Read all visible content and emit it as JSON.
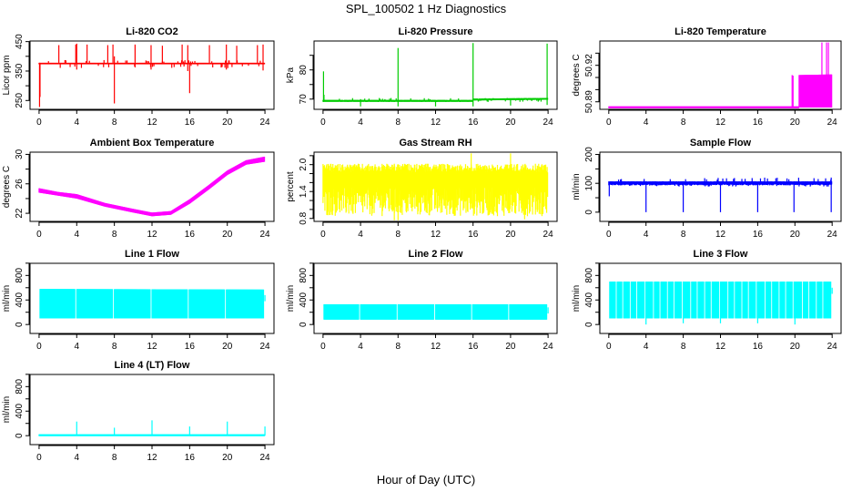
{
  "title": "SPL_100502  1 Hz Diagnostics",
  "xlabel": "Hour of Day (UTC)",
  "chart_data": [
    {
      "type": "line",
      "title": "Li-820 CO2",
      "ylabel": "Licor ppm",
      "color": "#ff0000",
      "xlim": [
        0,
        24
      ],
      "xticks": [
        0,
        4,
        8,
        12,
        16,
        20,
        24
      ],
      "ylim": [
        220,
        452
      ],
      "yticks": [
        250,
        300,
        350,
        400,
        450
      ],
      "ylabels": [
        "250",
        "350",
        "450"
      ],
      "band": [
        [
          0,
          373,
          378
        ],
        [
          24,
          373,
          378
        ]
      ],
      "noise": 0.0,
      "jitter": [
        360,
        388
      ],
      "gaps": [],
      "spikes": [
        [
          0.05,
          228,
          378
        ],
        [
          0.1,
          262,
          378
        ],
        [
          2.1,
          378,
          438
        ],
        [
          3.9,
          378,
          440
        ],
        [
          4.0,
          355,
          443
        ],
        [
          5.1,
          378,
          440
        ],
        [
          7.3,
          378,
          438
        ],
        [
          7.85,
          378,
          440
        ],
        [
          8.0,
          240,
          400
        ],
        [
          10.2,
          378,
          440
        ],
        [
          11.9,
          355,
          438
        ],
        [
          13.1,
          378,
          436
        ],
        [
          15.2,
          378,
          440
        ],
        [
          15.8,
          350,
          438
        ],
        [
          16.0,
          275,
          378
        ],
        [
          18.1,
          378,
          438
        ],
        [
          19.9,
          355,
          440
        ],
        [
          21.0,
          378,
          436
        ],
        [
          23.2,
          378,
          438
        ],
        [
          23.8,
          352,
          440
        ]
      ]
    },
    {
      "type": "line",
      "title": "Li-820 Pressure",
      "ylabel": "kPa",
      "color": "#00cc00",
      "xlim": [
        0,
        24
      ],
      "xticks": [
        0,
        4,
        8,
        12,
        16,
        20,
        24
      ],
      "ylim": [
        66.5,
        89.9
      ],
      "yticks": [
        70,
        75,
        80,
        85
      ],
      "ylabels": [
        "70",
        "80"
      ],
      "band": [
        [
          0,
          69.2,
          69.6
        ],
        [
          15.95,
          69.2,
          69.6
        ],
        [
          16,
          69.7,
          70.0
        ],
        [
          24,
          69.9,
          70.3
        ]
      ],
      "noise": 0.0,
      "jitter": [
        69.0,
        70.4
      ],
      "gaps": [],
      "spikes": [
        [
          0.05,
          69.3,
          79.5
        ],
        [
          0.1,
          69.3,
          71.5
        ],
        [
          4.0,
          67.5,
          70
        ],
        [
          8.0,
          67.5,
          87.5
        ],
        [
          12.0,
          67.5,
          69.5
        ],
        [
          16.0,
          67.5,
          89.2
        ],
        [
          20.0,
          67.8,
          70.2
        ],
        [
          23.9,
          68,
          89
        ]
      ]
    },
    {
      "type": "line",
      "title": "Li-820 Temperature",
      "ylabel": "degrees C",
      "color": "#ff00ff",
      "xlim": [
        0,
        24
      ],
      "xticks": [
        0,
        4,
        8,
        12,
        16,
        20,
        24
      ],
      "ylim": [
        50.8838,
        50.94
      ],
      "yticks": [
        50.89,
        50.9,
        50.91,
        50.92,
        50.93
      ],
      "ylabels": [
        "50.89",
        "50.92"
      ],
      "band": [
        [
          0,
          50.8853,
          50.8857
        ],
        [
          20.4,
          50.8853,
          50.8857
        ],
        [
          20.42,
          50.8853,
          50.912
        ],
        [
          24,
          50.8853,
          50.9125
        ]
      ],
      "noise": 0.0,
      "jitter": null,
      "gaps": [],
      "spikes": [
        [
          19.7,
          50.8853,
          50.912
        ],
        [
          19.8,
          50.8853,
          50.9115
        ],
        [
          22.9,
          50.8853,
          50.9388
        ],
        [
          23.4,
          50.8853,
          50.9388
        ],
        [
          23.6,
          50.8853,
          50.9388
        ]
      ]
    },
    {
      "type": "line",
      "title": "Ambient Box Temperature",
      "ylabel": "degrees C",
      "color": "#ff00ff",
      "xlim": [
        0,
        24
      ],
      "xticks": [
        0,
        4,
        8,
        12,
        16,
        20,
        24
      ],
      "ylim": [
        20.9,
        30.3
      ],
      "yticks": [
        22,
        24,
        26,
        28,
        30
      ],
      "ylabels": [
        "22",
        "26",
        "30"
      ],
      "band": [
        [
          0,
          24.8,
          25.4
        ],
        [
          2,
          24.4,
          24.9
        ],
        [
          4,
          24.0,
          24.6
        ],
        [
          7,
          22.9,
          23.4
        ],
        [
          10,
          22.1,
          22.6
        ],
        [
          12,
          21.6,
          22.1
        ],
        [
          14,
          21.8,
          22.3
        ],
        [
          16,
          23.3,
          23.9
        ],
        [
          18,
          25.2,
          25.8
        ],
        [
          20,
          27.2,
          27.8
        ],
        [
          22,
          28.6,
          29.2
        ],
        [
          24,
          29.0,
          29.7
        ]
      ],
      "noise": 0.0,
      "jitter": null,
      "gaps": [],
      "spikes": []
    },
    {
      "type": "line",
      "title": "Gas Stream RH",
      "ylabel": "percent",
      "color": "#ffff00",
      "xlim": [
        0,
        24
      ],
      "xticks": [
        0,
        4,
        8,
        12,
        16,
        20,
        24
      ],
      "ylim": [
        0.734,
        2.278
      ],
      "yticks": [
        0.8,
        1.0,
        1.2,
        1.4,
        1.6,
        1.8,
        2.0,
        2.2
      ],
      "ylabels": [
        "0.8",
        "1.4",
        "2.0"
      ],
      "band": [
        [
          0,
          0.85,
          2.02
        ],
        [
          24,
          0.85,
          2.02
        ]
      ],
      "noise": 0.55,
      "jitter": null,
      "gaps": [],
      "spikes": [
        [
          7.6,
          0.76,
          2.0
        ],
        [
          8.0,
          0.76,
          2.0
        ],
        [
          15.8,
          1.2,
          2.25
        ],
        [
          20.0,
          1.1,
          2.25
        ],
        [
          21.5,
          0.78,
          2.0
        ]
      ]
    },
    {
      "type": "line",
      "title": "Sample Flow",
      "ylabel": "ml/min",
      "color": "#0000ff",
      "xlim": [
        0,
        24
      ],
      "xticks": [
        0,
        4,
        8,
        12,
        16,
        20,
        24
      ],
      "ylim": [
        -32,
        208
      ],
      "yticks": [
        0,
        50,
        100,
        150,
        200
      ],
      "ylabels": [
        "0",
        "100",
        "200"
      ],
      "band": [
        [
          0,
          93,
          107
        ],
        [
          24,
          93,
          107
        ]
      ],
      "noise": 0.3,
      "jitter": [
        88,
        120
      ],
      "gaps": [],
      "spikes": [
        [
          0.05,
          55,
          105
        ],
        [
          4.0,
          0,
          105
        ],
        [
          8.0,
          0,
          105
        ],
        [
          12.0,
          0,
          105
        ],
        [
          16.0,
          0,
          105
        ],
        [
          19.9,
          0,
          105
        ],
        [
          23.9,
          0,
          120
        ]
      ]
    },
    {
      "type": "line",
      "title": "Line 1 Flow",
      "ylabel": "ml/min",
      "color": "#00ffff",
      "xlim": [
        0,
        24
      ],
      "xticks": [
        0,
        4,
        8,
        12,
        16,
        20,
        24
      ],
      "ylim": [
        -146,
        998
      ],
      "yticks": [
        0,
        200,
        400,
        600,
        800,
        1000
      ],
      "ylabels": [
        "0",
        "400",
        "800"
      ],
      "band": [
        [
          0.1,
          100,
          580
        ],
        [
          23.9,
          100,
          570
        ]
      ],
      "noise": 0.0,
      "jitter": null,
      "gaps": [
        3.9,
        7.9,
        11.9,
        15.85,
        19.8
      ],
      "spikes": [
        [
          24.0,
          380,
          480
        ]
      ]
    },
    {
      "type": "line",
      "title": "Line 2 Flow",
      "ylabel": "ml/min",
      "color": "#00ffff",
      "xlim": [
        0,
        24
      ],
      "xticks": [
        0,
        4,
        8,
        12,
        16,
        20,
        24
      ],
      "ylim": [
        -146,
        998
      ],
      "yticks": [
        0,
        200,
        400,
        600,
        800,
        1000
      ],
      "ylabels": [
        "0",
        "400",
        "800"
      ],
      "band": [
        [
          0.1,
          80,
          330
        ],
        [
          23.9,
          80,
          330
        ]
      ],
      "noise": 0.0,
      "jitter": null,
      "gaps": [
        3.9,
        7.9,
        11.9,
        15.85,
        19.8
      ],
      "spikes": [
        [
          24.0,
          180,
          280
        ]
      ]
    },
    {
      "type": "line",
      "title": "Line 3 Flow",
      "ylabel": "ml/min",
      "color": "#00ffff",
      "xlim": [
        0,
        24
      ],
      "xticks": [
        0,
        4,
        8,
        12,
        16,
        20,
        24
      ],
      "ylim": [
        -146,
        998
      ],
      "yticks": [
        0,
        200,
        400,
        600,
        800,
        1000
      ],
      "ylabels": [
        "0",
        "400",
        "800"
      ],
      "band": [
        [
          0.1,
          100,
          700
        ],
        [
          23.9,
          100,
          700
        ]
      ],
      "noise": 0.0,
      "jitter": null,
      "gaps": [
        0.8,
        1.5,
        2.3,
        3.0,
        3.9,
        4.8,
        5.5,
        6.3,
        7.0,
        7.9,
        8.8,
        9.5,
        10.3,
        11.0,
        11.9,
        12.8,
        13.5,
        14.3,
        15.0,
        15.85,
        16.8,
        17.5,
        18.3,
        19.0,
        19.8,
        20.8,
        21.5,
        22.3,
        23.0
      ],
      "spikes": [
        [
          4.0,
          0,
          700
        ],
        [
          8.0,
          20,
          700
        ],
        [
          12.0,
          20,
          700
        ],
        [
          16.0,
          20,
          700
        ],
        [
          20.0,
          0,
          700
        ],
        [
          24.0,
          500,
          600
        ]
      ]
    },
    {
      "type": "line",
      "title": "Line 4 (LT) Flow",
      "ylabel": "ml/min",
      "color": "#00ffff",
      "xlim": [
        0,
        24
      ],
      "xticks": [
        0,
        4,
        8,
        12,
        16,
        20,
        24
      ],
      "ylim": [
        -146,
        998
      ],
      "yticks": [
        0,
        200,
        400,
        600,
        800,
        1000
      ],
      "ylabels": [
        "0",
        "400",
        "800"
      ],
      "band": [
        [
          0,
          0,
          15
        ],
        [
          24,
          0,
          15
        ]
      ],
      "noise": 0.0,
      "jitter": null,
      "gaps": [],
      "spikes": [
        [
          4.0,
          0,
          230
        ],
        [
          8.0,
          0,
          130
        ],
        [
          12.0,
          0,
          250
        ],
        [
          16.0,
          0,
          150
        ],
        [
          20.0,
          0,
          230
        ],
        [
          24.0,
          0,
          150
        ]
      ]
    }
  ]
}
